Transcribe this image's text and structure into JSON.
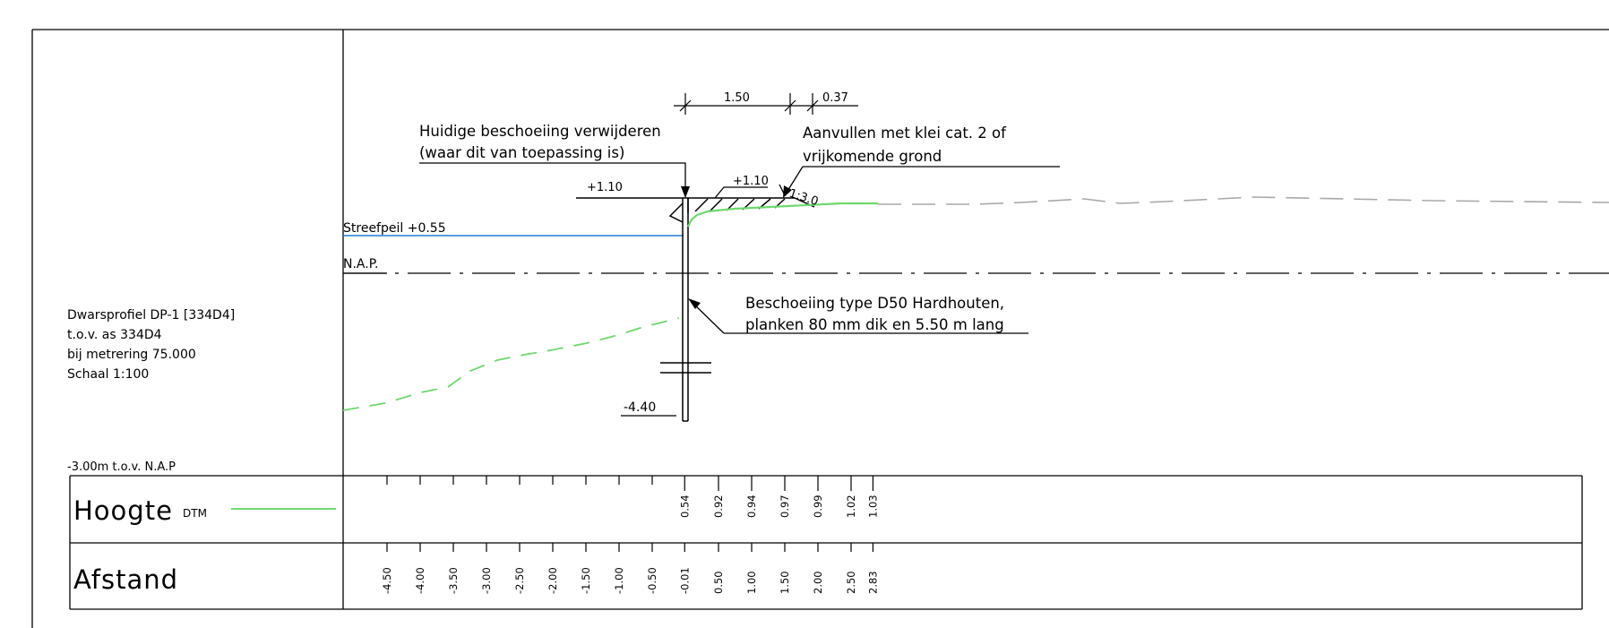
{
  "info": {
    "lines": [
      "Dwarsprofiel DP-1 [334D4]",
      "t.o.v. as 334D4",
      "bij metrering 75.000",
      "Schaal 1:100"
    ],
    "reference_level": "-3.00m t.o.v. N.A.P"
  },
  "labels": {
    "remove_line1": "Huidige beschoeiing verwijderen",
    "remove_line2": "(waar dit van toepassing is)",
    "fill_line1": "Aanvullen met klei cat. 2 of",
    "fill_line2": "vrijkomende grond",
    "sheet_line1": "Beschoeiing type D50 Hardhouten,",
    "sheet_line2": "planken 80 mm dik en 5.50 m lang",
    "streefpeil": "Streefpeil +0.55",
    "nap": "N.A.P.",
    "level_left": "+1.10",
    "level_right": "+1.10",
    "slope": "1:3.0",
    "tip_level": "-4.40",
    "dim_a": "1.50",
    "dim_b": "0.37"
  },
  "table": {
    "hoogte_label": "Hoogte",
    "dtm_label": "DTM",
    "afstand_label": "Afstand",
    "hoogte_values": [
      {
        "x": -0.01,
        "v": "0.54"
      },
      {
        "x": 0.5,
        "v": "0.92"
      },
      {
        "x": 1.0,
        "v": "0.94"
      },
      {
        "x": 1.5,
        "v": "0.97"
      },
      {
        "x": 2.0,
        "v": "0.99"
      },
      {
        "x": 2.5,
        "v": "1.02"
      },
      {
        "x": 2.83,
        "v": "1.03"
      }
    ],
    "afstand_values": [
      {
        "x": -4.5,
        "v": "-4.50"
      },
      {
        "x": -4.0,
        "v": "-4.00"
      },
      {
        "x": -3.5,
        "v": "-3.50"
      },
      {
        "x": -3.0,
        "v": "-3.00"
      },
      {
        "x": -2.5,
        "v": "-2.50"
      },
      {
        "x": -2.0,
        "v": "-2.00"
      },
      {
        "x": -1.5,
        "v": "-1.50"
      },
      {
        "x": -1.0,
        "v": "-1.00"
      },
      {
        "x": -0.5,
        "v": "-0.50"
      },
      {
        "x": -0.01,
        "v": "-0.01"
      },
      {
        "x": 0.5,
        "v": "0.50"
      },
      {
        "x": 1.0,
        "v": "1.00"
      },
      {
        "x": 1.5,
        "v": "1.50"
      },
      {
        "x": 2.0,
        "v": "2.00"
      },
      {
        "x": 2.5,
        "v": "2.50"
      },
      {
        "x": 2.83,
        "v": "2.83"
      }
    ]
  },
  "colors": {
    "water": "#1f7fd6",
    "dtm": "#6fd96f",
    "ground_far": "#a9a9a9"
  }
}
